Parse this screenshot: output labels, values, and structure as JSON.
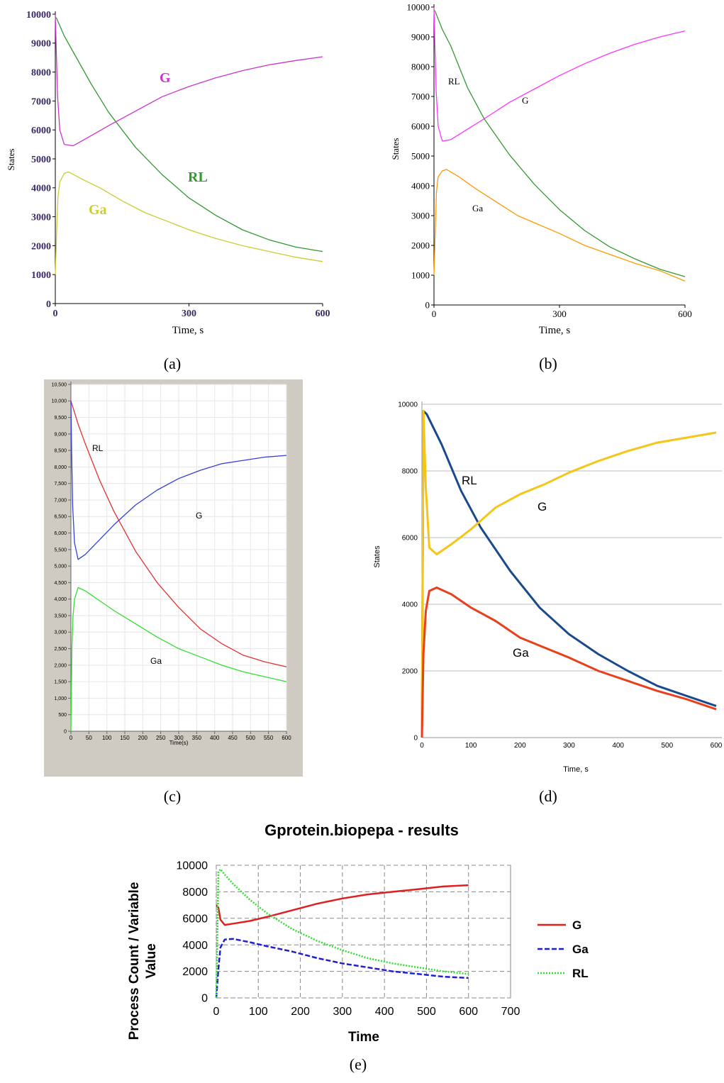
{
  "captions": [
    "(a)",
    "(b)",
    "(c)",
    "(d)",
    "(e)"
  ],
  "chart_data": [
    {
      "id": "a",
      "type": "line",
      "xlabel": "Time, s",
      "ylabel": "States",
      "xlim": [
        0,
        600
      ],
      "ylim": [
        0,
        10000
      ],
      "xticks": [
        "0",
        "300",
        "600"
      ],
      "yticks": [
        "0",
        "1000",
        "2000",
        "3000",
        "4000",
        "5000",
        "6000",
        "7000",
        "8000",
        "9000",
        "10000"
      ],
      "series": [
        {
          "name": "G",
          "color": "#cc33cc",
          "x": [
            0,
            2,
            5,
            10,
            20,
            40,
            80,
            120,
            180,
            240,
            300,
            360,
            420,
            480,
            540,
            600
          ],
          "y": [
            10000,
            8800,
            7200,
            6000,
            5500,
            5450,
            5800,
            6150,
            6650,
            7150,
            7500,
            7800,
            8050,
            8250,
            8400,
            8530
          ]
        },
        {
          "name": "RL",
          "color": "#339933",
          "x": [
            0,
            3,
            10,
            20,
            40,
            80,
            120,
            180,
            240,
            300,
            360,
            420,
            480,
            540,
            600
          ],
          "y": [
            9900,
            9850,
            9600,
            9250,
            8700,
            7600,
            6600,
            5400,
            4450,
            3650,
            3050,
            2550,
            2200,
            1950,
            1800
          ]
        },
        {
          "name": "Ga",
          "color": "#cccc33",
          "x": [
            0,
            3,
            6,
            10,
            20,
            30,
            60,
            100,
            150,
            200,
            250,
            300,
            360,
            420,
            480,
            540,
            600
          ],
          "y": [
            1000,
            2500,
            3700,
            4200,
            4500,
            4550,
            4300,
            4000,
            3550,
            3150,
            2850,
            2550,
            2250,
            2000,
            1800,
            1600,
            1450
          ]
        }
      ]
    },
    {
      "id": "b",
      "type": "line",
      "xlabel": "Time, s",
      "ylabel": "States",
      "xlim": [
        0,
        600
      ],
      "ylim": [
        0,
        10000
      ],
      "xticks": [
        "0",
        "300",
        "600"
      ],
      "yticks": [
        "0",
        "1000",
        "2000",
        "3000",
        "4000",
        "5000",
        "6000",
        "7000",
        "8000",
        "9000",
        "10000"
      ],
      "series": [
        {
          "name": "G",
          "color": "#ff33ff",
          "x": [
            0,
            2,
            5,
            10,
            20,
            40,
            80,
            120,
            180,
            240,
            300,
            360,
            420,
            480,
            540,
            600
          ],
          "y": [
            10000,
            8800,
            7200,
            6000,
            5500,
            5550,
            5900,
            6250,
            6800,
            7250,
            7700,
            8100,
            8450,
            8750,
            9000,
            9200
          ]
        },
        {
          "name": "RL",
          "color": "#339933",
          "x": [
            0,
            3,
            10,
            20,
            40,
            80,
            120,
            180,
            240,
            300,
            360,
            420,
            480,
            540,
            600
          ],
          "y": [
            9900,
            9850,
            9600,
            9250,
            8700,
            7300,
            6250,
            5050,
            4050,
            3200,
            2500,
            1950,
            1550,
            1200,
            950
          ]
        },
        {
          "name": "Ga",
          "color": "#ff9900",
          "x": [
            0,
            3,
            6,
            10,
            20,
            30,
            60,
            100,
            150,
            200,
            250,
            300,
            360,
            420,
            480,
            540,
            600
          ],
          "y": [
            1000,
            2500,
            3800,
            4300,
            4500,
            4550,
            4300,
            3900,
            3450,
            3000,
            2700,
            2400,
            2000,
            1700,
            1400,
            1150,
            800
          ]
        }
      ]
    },
    {
      "id": "c",
      "type": "line",
      "xlabel": "Time(s)",
      "ylabel": "",
      "xlim": [
        0,
        600
      ],
      "ylim": [
        0,
        10500
      ],
      "xticks": [
        "0",
        "50",
        "100",
        "150",
        "200",
        "250",
        "300",
        "350",
        "400",
        "450",
        "500",
        "550",
        "600"
      ],
      "yticks": [
        "0",
        "500",
        "1,000",
        "1,500",
        "2,000",
        "2,500",
        "3,000",
        "3,500",
        "4,000",
        "4,500",
        "5,000",
        "5,500",
        "6,000",
        "6,500",
        "7,000",
        "7,500",
        "8,000",
        "8,500",
        "9,000",
        "9,500",
        "10,000",
        "10,500"
      ],
      "series": [
        {
          "name": "RL",
          "color": "#e53030",
          "x": [
            0,
            10,
            20,
            40,
            80,
            120,
            180,
            240,
            300,
            360,
            420,
            480,
            540,
            600
          ],
          "y": [
            10000,
            9650,
            9300,
            8700,
            7600,
            6650,
            5450,
            4500,
            3750,
            3100,
            2650,
            2300,
            2100,
            1950
          ]
        },
        {
          "name": "G",
          "color": "#3340e0",
          "x": [
            0,
            2,
            5,
            10,
            20,
            40,
            80,
            120,
            180,
            240,
            300,
            360,
            420,
            480,
            540,
            600
          ],
          "y": [
            10000,
            8500,
            6800,
            5700,
            5200,
            5350,
            5800,
            6250,
            6850,
            7300,
            7650,
            7900,
            8100,
            8200,
            8300,
            8350
          ]
        },
        {
          "name": "Ga",
          "color": "#33dd33",
          "x": [
            0,
            3,
            6,
            10,
            20,
            40,
            80,
            120,
            180,
            240,
            300,
            360,
            420,
            480,
            540,
            600
          ],
          "y": [
            0,
            2600,
            3500,
            4000,
            4350,
            4250,
            3950,
            3650,
            3250,
            2850,
            2500,
            2250,
            2000,
            1800,
            1650,
            1500
          ]
        }
      ]
    },
    {
      "id": "d",
      "type": "line",
      "xlabel": "Time, s",
      "ylabel": "States",
      "xlim": [
        0,
        600
      ],
      "ylim": [
        0,
        10000
      ],
      "xticks": [
        "0",
        "100",
        "200",
        "300",
        "400",
        "500",
        "600"
      ],
      "yticks": [
        "0",
        "2000",
        "4000",
        "6000",
        "8000",
        "10000"
      ],
      "series": [
        {
          "name": "RL",
          "color": "#1a4a8a",
          "x": [
            0,
            3,
            10,
            20,
            40,
            80,
            120,
            180,
            240,
            300,
            360,
            420,
            480,
            540,
            600
          ],
          "y": [
            0,
            9800,
            9700,
            9400,
            8800,
            7400,
            6300,
            5000,
            3900,
            3100,
            2500,
            2000,
            1550,
            1250,
            950
          ]
        },
        {
          "name": "G",
          "color": "#f5c518",
          "x": [
            0,
            3,
            8,
            15,
            30,
            60,
            100,
            150,
            200,
            250,
            300,
            360,
            420,
            480,
            540,
            600
          ],
          "y": [
            0,
            9800,
            7500,
            5700,
            5500,
            5800,
            6250,
            6900,
            7300,
            7600,
            7950,
            8300,
            8600,
            8850,
            9000,
            9150
          ]
        },
        {
          "name": "Ga",
          "color": "#e8401c",
          "x": [
            0,
            3,
            8,
            15,
            30,
            60,
            100,
            150,
            200,
            250,
            300,
            360,
            420,
            480,
            540,
            600
          ],
          "y": [
            0,
            2500,
            3800,
            4400,
            4500,
            4300,
            3900,
            3500,
            3000,
            2700,
            2400,
            2000,
            1700,
            1400,
            1150,
            850
          ]
        }
      ]
    },
    {
      "id": "e",
      "type": "line",
      "title": "Gprotein.biopepa - results",
      "xlabel": "Time",
      "ylabel": "Process Count / Variable Value",
      "xlim": [
        0,
        700
      ],
      "ylim": [
        0,
        10000
      ],
      "xticks": [
        "0",
        "100",
        "200",
        "300",
        "400",
        "500",
        "600",
        "700"
      ],
      "yticks": [
        "0",
        "2000",
        "4000",
        "6000",
        "8000",
        "10000"
      ],
      "legend_position": "right",
      "series": [
        {
          "name": "G",
          "color": "#e02020",
          "dash": "solid",
          "x": [
            0,
            5,
            10,
            20,
            40,
            80,
            120,
            180,
            240,
            300,
            360,
            420,
            480,
            540,
            600
          ],
          "y": [
            7000,
            6800,
            5900,
            5500,
            5600,
            5800,
            6100,
            6600,
            7100,
            7500,
            7800,
            8000,
            8200,
            8400,
            8500
          ]
        },
        {
          "name": "Ga",
          "color": "#2020d0",
          "dash": "dashed",
          "x": [
            0,
            5,
            10,
            20,
            40,
            80,
            120,
            180,
            240,
            300,
            360,
            420,
            480,
            540,
            600
          ],
          "y": [
            0,
            2200,
            3800,
            4400,
            4450,
            4200,
            3900,
            3500,
            3000,
            2600,
            2300,
            2000,
            1800,
            1600,
            1500
          ]
        },
        {
          "name": "RL",
          "color": "#33dd33",
          "dash": "dotted",
          "x": [
            0,
            5,
            10,
            20,
            40,
            80,
            120,
            180,
            240,
            300,
            360,
            420,
            480,
            540,
            600
          ],
          "y": [
            0,
            9500,
            9700,
            9300,
            8600,
            7400,
            6400,
            5200,
            4300,
            3600,
            3000,
            2600,
            2300,
            2000,
            1800
          ]
        }
      ]
    }
  ]
}
